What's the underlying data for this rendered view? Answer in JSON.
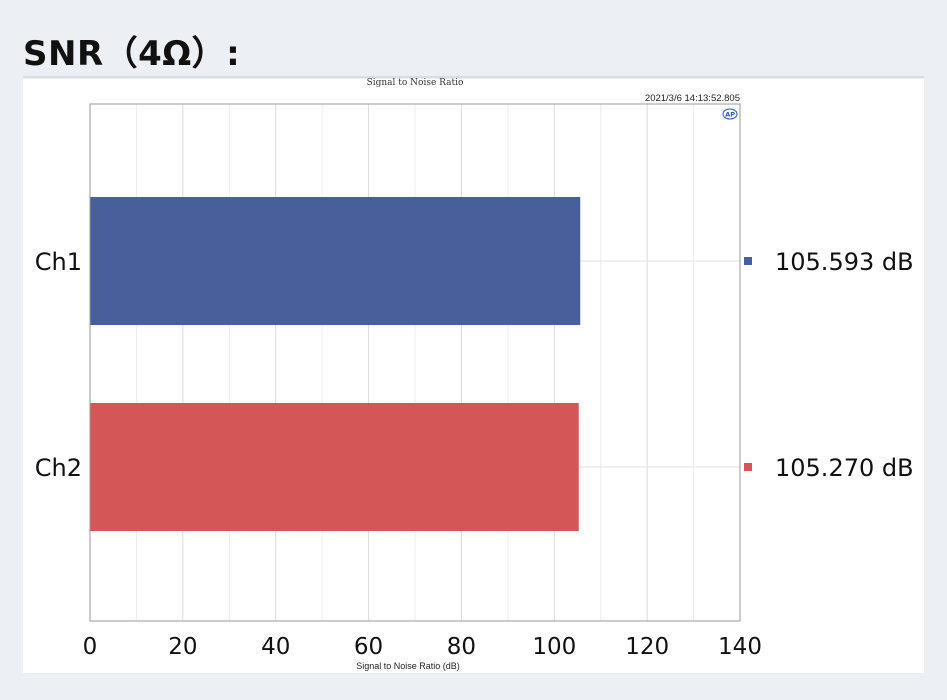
{
  "heading": "SNR（4Ω）:",
  "timestamp": "2021/3/6 14:13:52.805",
  "logo_icon": "ap-logo-icon",
  "chart_data": {
    "type": "bar",
    "orientation": "horizontal",
    "title": "Signal to Noise Ratio",
    "xlabel": "Signal to Noise Ratio (dB)",
    "ylabel": "",
    "categories": [
      "Ch1",
      "Ch2"
    ],
    "values": [
      105.593,
      105.27
    ],
    "value_labels": [
      "105.593 dB",
      "105.270 dB"
    ],
    "colors": [
      "#485f9b",
      "#d55657"
    ],
    "xlim": [
      0,
      140
    ],
    "xticks": [
      0,
      20,
      40,
      60,
      80,
      100,
      120,
      140
    ],
    "grid": true,
    "legend": "right"
  }
}
